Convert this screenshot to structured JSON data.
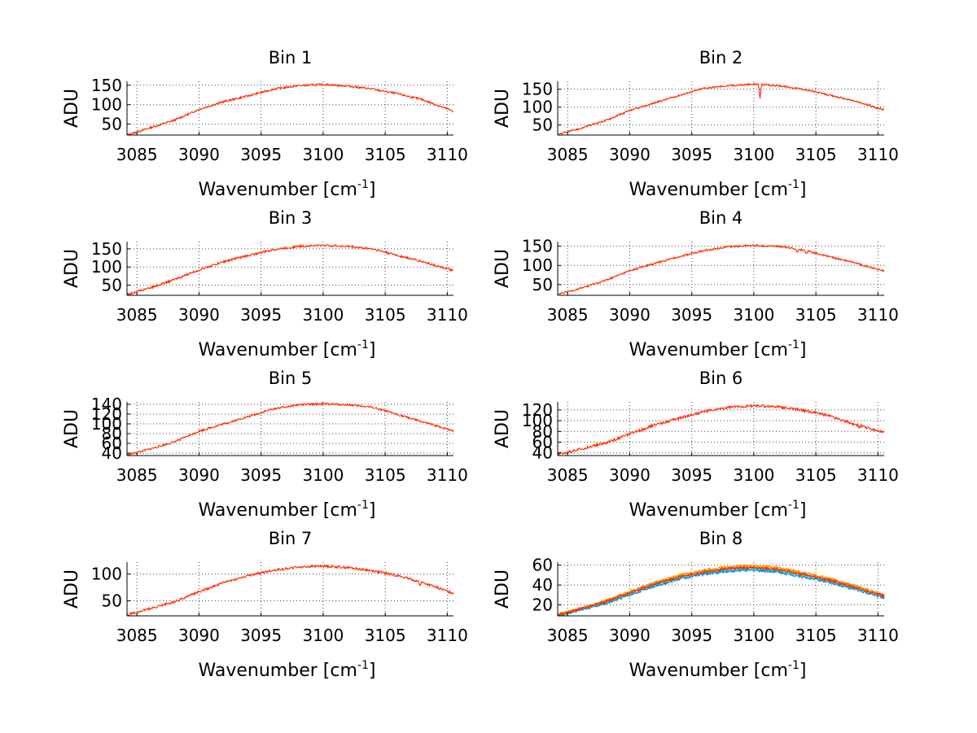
{
  "chart_data": [
    {
      "type": "line",
      "title": "Bin 1",
      "xlabel_main": "Wavenumber [cm",
      "xlabel_sup": "-1",
      "xlabel_end": "]",
      "ylabel": "ADU",
      "xlim": [
        3084.2,
        3110.5
      ],
      "ylim": [
        22,
        160
      ],
      "x_ticks": [
        3085,
        3090,
        3095,
        3100,
        3105,
        3110
      ],
      "y_ticks": [
        50,
        100,
        150
      ],
      "grid": true,
      "noise": 2.5,
      "dips": [],
      "x": [
        3084.2,
        3086,
        3088,
        3090,
        3092,
        3094,
        3096,
        3098,
        3100,
        3102,
        3104,
        3106,
        3108,
        3110.5
      ],
      "series": [
        {
          "name": "trace",
          "color": "#ff2a00",
          "values": [
            22,
            40,
            60,
            88,
            108,
            123,
            140,
            149,
            152,
            148,
            140,
            128,
            113,
            83
          ]
        }
      ]
    },
    {
      "type": "line",
      "title": "Bin 2",
      "xlabel_main": "Wavenumber [cm",
      "xlabel_sup": "-1",
      "xlabel_end": "]",
      "ylabel": "ADU",
      "xlim": [
        3084.2,
        3110.5
      ],
      "ylim": [
        22,
        172
      ],
      "x_ticks": [
        3085,
        3090,
        3095,
        3100,
        3105,
        3110
      ],
      "y_ticks": [
        50,
        100,
        150
      ],
      "grid": true,
      "noise": 2.5,
      "dips": [
        [
          3100.5,
          38
        ]
      ],
      "x": [
        3084.2,
        3086,
        3088,
        3090,
        3092,
        3094,
        3096,
        3098,
        3100,
        3102,
        3104,
        3106,
        3108,
        3110.5
      ],
      "series": [
        {
          "name": "trace",
          "color": "#ff2a00",
          "values": [
            24,
            40,
            62,
            90,
            112,
            133,
            153,
            160,
            164,
            160,
            150,
            134,
            118,
            92
          ]
        }
      ]
    },
    {
      "type": "line",
      "title": "Bin 3",
      "xlabel_main": "Wavenumber [cm",
      "xlabel_sup": "-1",
      "xlabel_end": "]",
      "ylabel": "ADU",
      "xlim": [
        3084.2,
        3110.5
      ],
      "ylim": [
        22,
        170
      ],
      "x_ticks": [
        3085,
        3090,
        3095,
        3100,
        3105,
        3110
      ],
      "y_ticks": [
        50,
        100,
        150
      ],
      "grid": true,
      "noise": 3,
      "dips": [],
      "x": [
        3084.2,
        3086,
        3088,
        3090,
        3092,
        3094,
        3096,
        3098,
        3100,
        3102,
        3104,
        3106,
        3108,
        3110.5
      ],
      "series": [
        {
          "name": "trace",
          "color": "#ff2a00",
          "values": [
            24,
            42,
            65,
            92,
            115,
            132,
            148,
            157,
            160,
            157,
            150,
            132,
            115,
            90
          ]
        }
      ]
    },
    {
      "type": "line",
      "title": "Bin 4",
      "xlabel_main": "Wavenumber [cm",
      "xlabel_sup": "-1",
      "xlabel_end": "]",
      "ylabel": "ADU",
      "xlim": [
        3084.2,
        3110.5
      ],
      "ylim": [
        22,
        162
      ],
      "x_ticks": [
        3085,
        3090,
        3095,
        3100,
        3105,
        3110
      ],
      "y_ticks": [
        50,
        100,
        150
      ],
      "grid": true,
      "noise": 2.5,
      "dips": [
        [
          3103.5,
          10
        ],
        [
          3104.2,
          8
        ]
      ],
      "x": [
        3084.2,
        3086,
        3088,
        3090,
        3092,
        3094,
        3096,
        3098,
        3100,
        3102,
        3104,
        3106,
        3108,
        3110.5
      ],
      "series": [
        {
          "name": "trace",
          "color": "#ff2a00",
          "values": [
            24,
            40,
            60,
            86,
            105,
            123,
            139,
            149,
            152,
            150,
            140,
            123,
            108,
            85
          ]
        }
      ]
    },
    {
      "type": "line",
      "title": "Bin 5",
      "xlabel_main": "Wavenumber [cm",
      "xlabel_sup": "-1",
      "xlabel_end": "]",
      "ylabel": "ADU",
      "xlim": [
        3084.2,
        3110.5
      ],
      "ylim": [
        35,
        145
      ],
      "x_ticks": [
        3085,
        3090,
        3095,
        3100,
        3105,
        3110
      ],
      "y_ticks": [
        40,
        60,
        80,
        100,
        120,
        140
      ],
      "grid": true,
      "noise": 2,
      "dips": [],
      "x": [
        3084.2,
        3086,
        3088,
        3090,
        3092,
        3094,
        3096,
        3098,
        3100,
        3102,
        3104,
        3106,
        3108,
        3110.5
      ],
      "series": [
        {
          "name": "trace",
          "color": "#ff2a00",
          "values": [
            36,
            48,
            63,
            85,
            100,
            115,
            131,
            139,
            141,
            139,
            134,
            119,
            104,
            86
          ]
        }
      ]
    },
    {
      "type": "line",
      "title": "Bin 6",
      "xlabel_main": "Wavenumber [cm",
      "xlabel_sup": "-1",
      "xlabel_end": "]",
      "ylabel": "ADU",
      "xlim": [
        3084.2,
        3110.5
      ],
      "ylim": [
        35,
        135
      ],
      "x_ticks": [
        3085,
        3090,
        3095,
        3100,
        3105,
        3110
      ],
      "y_ticks": [
        40,
        60,
        80,
        100,
        120
      ],
      "grid": true,
      "noise": 2.5,
      "dips": [
        [
          3108.5,
          6
        ]
      ],
      "x": [
        3084.2,
        3086,
        3088,
        3090,
        3092,
        3094,
        3096,
        3098,
        3100,
        3102,
        3104,
        3106,
        3108,
        3110.5
      ],
      "series": [
        {
          "name": "trace",
          "color": "#ff2a00",
          "values": [
            37,
            47,
            58,
            75,
            92,
            105,
            117,
            125,
            128,
            126,
            119,
            110,
            94,
            78
          ]
        }
      ]
    },
    {
      "type": "line",
      "title": "Bin 7",
      "xlabel_main": "Wavenumber [cm",
      "xlabel_sup": "-1",
      "xlabel_end": "]",
      "ylabel": "ADU",
      "xlim": [
        3084.2,
        3110.5
      ],
      "ylim": [
        22,
        122
      ],
      "x_ticks": [
        3085,
        3090,
        3095,
        3100,
        3105,
        3110
      ],
      "y_ticks": [
        50,
        100
      ],
      "grid": true,
      "noise": 2.2,
      "dips": [
        [
          3107.8,
          7
        ]
      ],
      "x": [
        3084.2,
        3086,
        3088,
        3090,
        3092,
        3094,
        3096,
        3098,
        3100,
        3102,
        3104,
        3106,
        3108,
        3110.5
      ],
      "series": [
        {
          "name": "trace",
          "color": "#ff2a00",
          "values": [
            24,
            35,
            48,
            67,
            84,
            97,
            107,
            113,
            115,
            112,
            106,
            97,
            84,
            64
          ]
        }
      ]
    },
    {
      "type": "line",
      "title": "Bin 8",
      "xlabel_main": "Wavenumber [cm",
      "xlabel_sup": "-1",
      "xlabel_end": "]",
      "ylabel": "ADU",
      "xlim": [
        3084.2,
        3110.5
      ],
      "ylim": [
        9,
        63
      ],
      "x_ticks": [
        3085,
        3090,
        3095,
        3100,
        3105,
        3110
      ],
      "y_ticks": [
        20,
        40,
        60
      ],
      "grid": true,
      "noise": 1.2,
      "dips": [],
      "x": [
        3084.2,
        3086,
        3088,
        3090,
        3092,
        3094,
        3096,
        3098,
        3100,
        3102,
        3104,
        3106,
        3108,
        3110.5
      ],
      "series": [
        {
          "name": "trace-a",
          "color": "#0072bd",
          "values": [
            9,
            15,
            21,
            30,
            39,
            46,
            51,
            54,
            55,
            53,
            48,
            43,
            36,
            27
          ]
        },
        {
          "name": "trace-b",
          "color": "#00c8ff",
          "values": [
            9.5,
            15.5,
            22,
            31,
            40,
            47,
            52,
            55,
            56,
            54,
            49,
            44,
            37,
            28
          ]
        },
        {
          "name": "trace-c",
          "color": "#8a8a00",
          "values": [
            10,
            16,
            23,
            32.5,
            41.5,
            49,
            54,
            57,
            58,
            56,
            51,
            46,
            39,
            29
          ]
        },
        {
          "name": "trace-d",
          "color": "#ff8c00",
          "values": [
            10.5,
            16.5,
            24,
            33.5,
            42.5,
            50,
            55,
            58.5,
            59.5,
            57.5,
            52.5,
            47,
            40,
            30
          ]
        },
        {
          "name": "trace-e",
          "color": "#ff2a00",
          "values": [
            10,
            16,
            23,
            32,
            41,
            48,
            53,
            56.5,
            57.5,
            55.5,
            50.5,
            45,
            38,
            29
          ]
        }
      ]
    }
  ]
}
